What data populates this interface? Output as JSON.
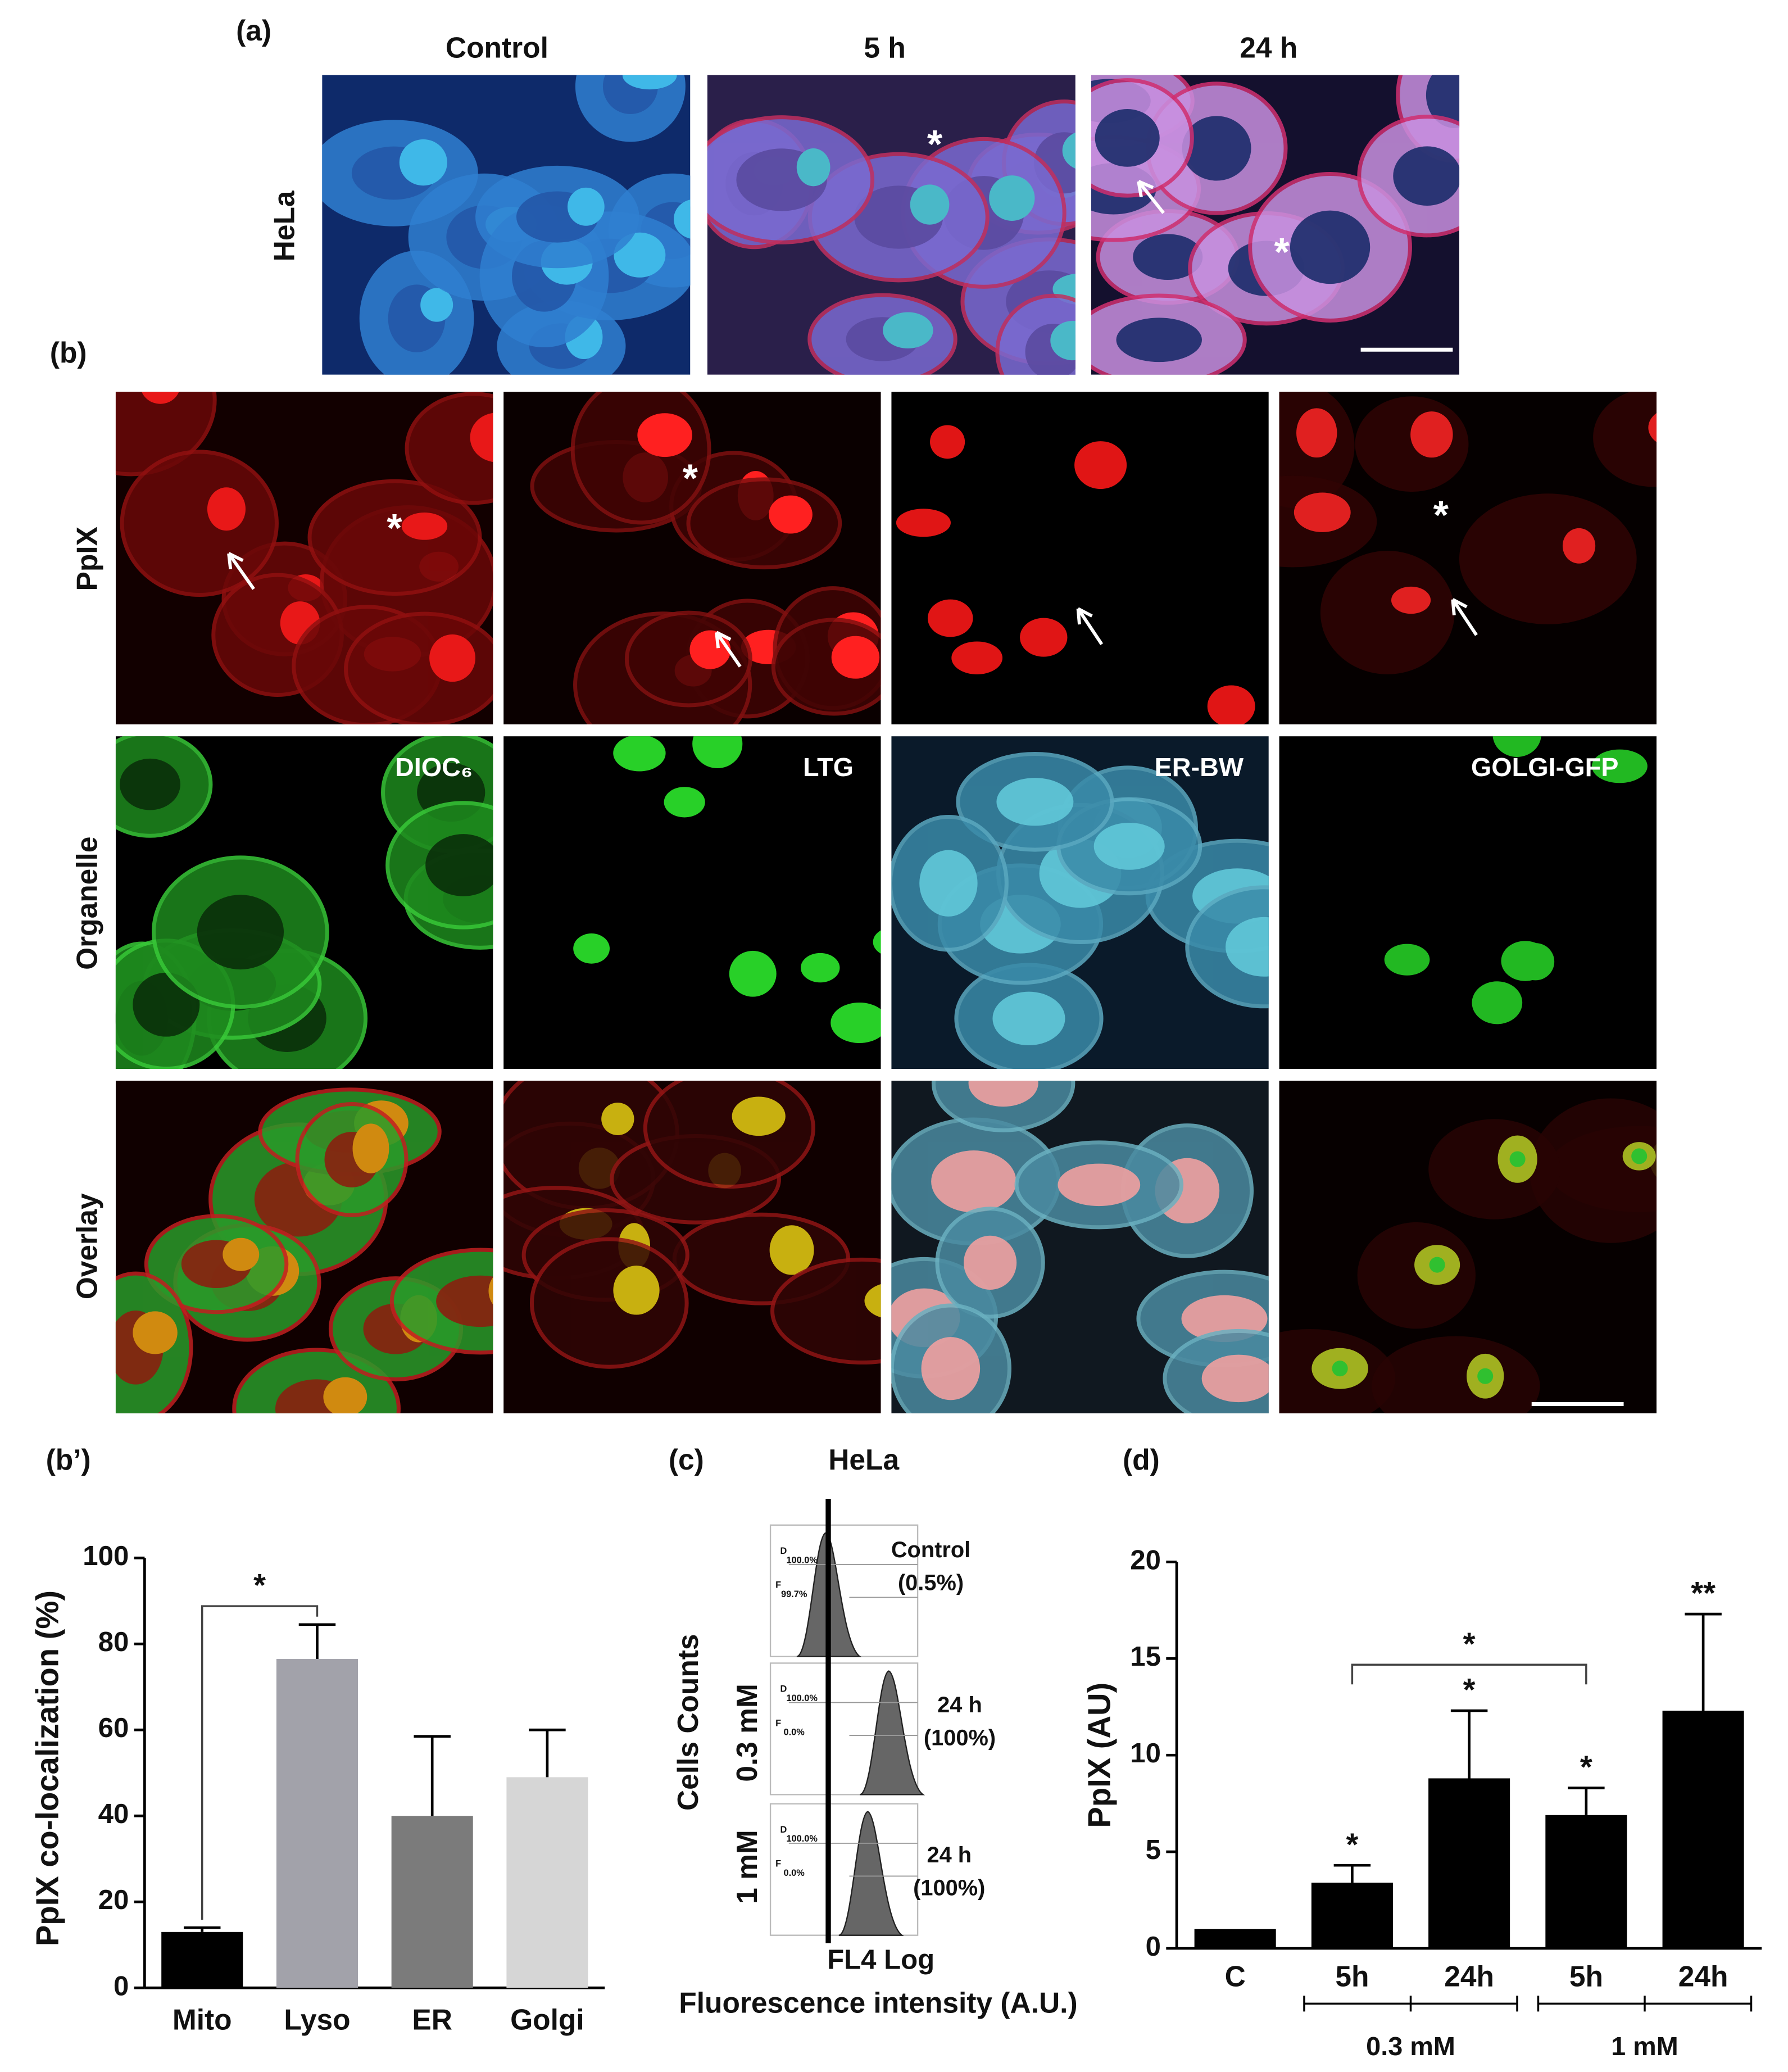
{
  "panel_a": {
    "label": "(a)",
    "columns": [
      "Control",
      "5 h",
      "24 h"
    ],
    "row_label": "HeLa",
    "image_marker": "*"
  },
  "panel_b": {
    "label": "(b)",
    "rows": [
      "PpIX",
      "Organelle",
      "Overlay"
    ],
    "organelle_labels": [
      "DIOC₆",
      "LTG",
      "ER-BW",
      "GOLGI-GFP"
    ],
    "image_marker": "*"
  },
  "panel_c": {
    "label": "(c)",
    "title": "HeLa",
    "y_label": "Cells Counts",
    "row_labels": [
      "0.3 mM",
      "1 mM"
    ],
    "histograms": [
      {
        "label": [
          "Control",
          "(0.5%)"
        ],
        "gate_labels": [
          "D",
          "100.0%",
          "F",
          "99.7%"
        ]
      },
      {
        "label": [
          "24 h",
          "(100%)"
        ],
        "gate_labels": [
          "D",
          "100.0%",
          "F",
          "0.0%"
        ]
      },
      {
        "label": [
          "24 h",
          "(100%)"
        ],
        "gate_labels": [
          "D",
          "100.0%",
          "F",
          "0.0%"
        ]
      }
    ],
    "x_label": "FL4 Log",
    "x_title": "Fluorescence intensity (A.U.)"
  },
  "chart_data": [
    {
      "type": "bar",
      "panel_label": "(b’)",
      "y_label": "PpIX co-localization (%)",
      "categories": [
        "Mito",
        "Lyso",
        "ER",
        "Golgi"
      ],
      "values": [
        13,
        76.5,
        40,
        49
      ],
      "errors": [
        1,
        8,
        18.5,
        11
      ],
      "colors": [
        "#000000",
        "#a2a2aa",
        "#7b7b7b",
        "#d6d6d6"
      ],
      "ylim": [
        0,
        100
      ],
      "yticks": [
        0,
        20,
        40,
        60,
        80,
        100
      ],
      "significance": [
        {
          "from": 0,
          "to": 1,
          "label": "*"
        }
      ]
    },
    {
      "type": "bar",
      "panel_label": "(d)",
      "y_label": "PpIX (AU)",
      "categories": [
        "C",
        "5h",
        "24h",
        "5h",
        "24h"
      ],
      "values": [
        1,
        3.4,
        8.8,
        6.9,
        12.3
      ],
      "errors": [
        null,
        0.9,
        3.5,
        1.4,
        5
      ],
      "color": "#000000",
      "ylim": [
        0,
        20
      ],
      "yticks": [
        0,
        5,
        10,
        15,
        20
      ],
      "annotations": [
        {
          "index": 1,
          "label": "*"
        },
        {
          "index": 2,
          "label": "*"
        },
        {
          "index": 3,
          "label": "*"
        },
        {
          "index": 4,
          "label": "**"
        }
      ],
      "groups": [
        {
          "label": "0.3 mM",
          "from": 1,
          "to": 2
        },
        {
          "label": "1 mM",
          "from": 3,
          "to": 4
        }
      ],
      "significance": [
        {
          "from": 1,
          "to": 3,
          "label": "*"
        }
      ]
    }
  ]
}
